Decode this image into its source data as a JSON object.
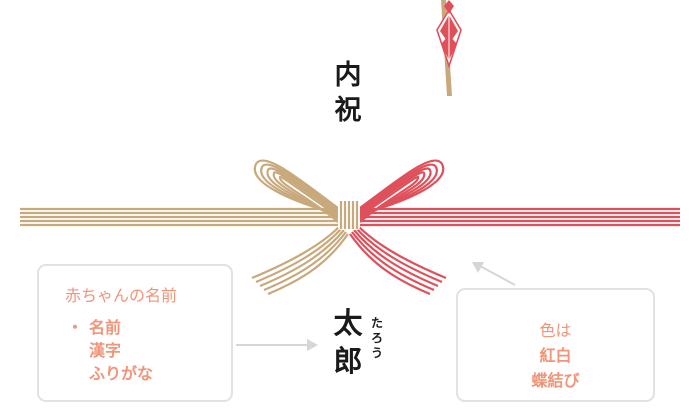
{
  "noshi": {
    "omotegaki": [
      "内",
      "祝"
    ],
    "name": [
      "太",
      "郎"
    ],
    "furigana": [
      "た",
      "ろ",
      "う"
    ]
  },
  "notes": {
    "left": {
      "title": "赤ちゃんの名前",
      "bullet": "・",
      "items": [
        "名前",
        "漢字",
        "ふりがな"
      ]
    },
    "right": {
      "line1_plain": "色は",
      "line1_bold": "紅白",
      "line2_bold": "蝶結び"
    }
  },
  "colors": {
    "gold": "#c8a97c",
    "red": "#e0505a",
    "accent": "#f0957a",
    "border": "#e2e2e2",
    "arrow": "#d6d6d6"
  }
}
